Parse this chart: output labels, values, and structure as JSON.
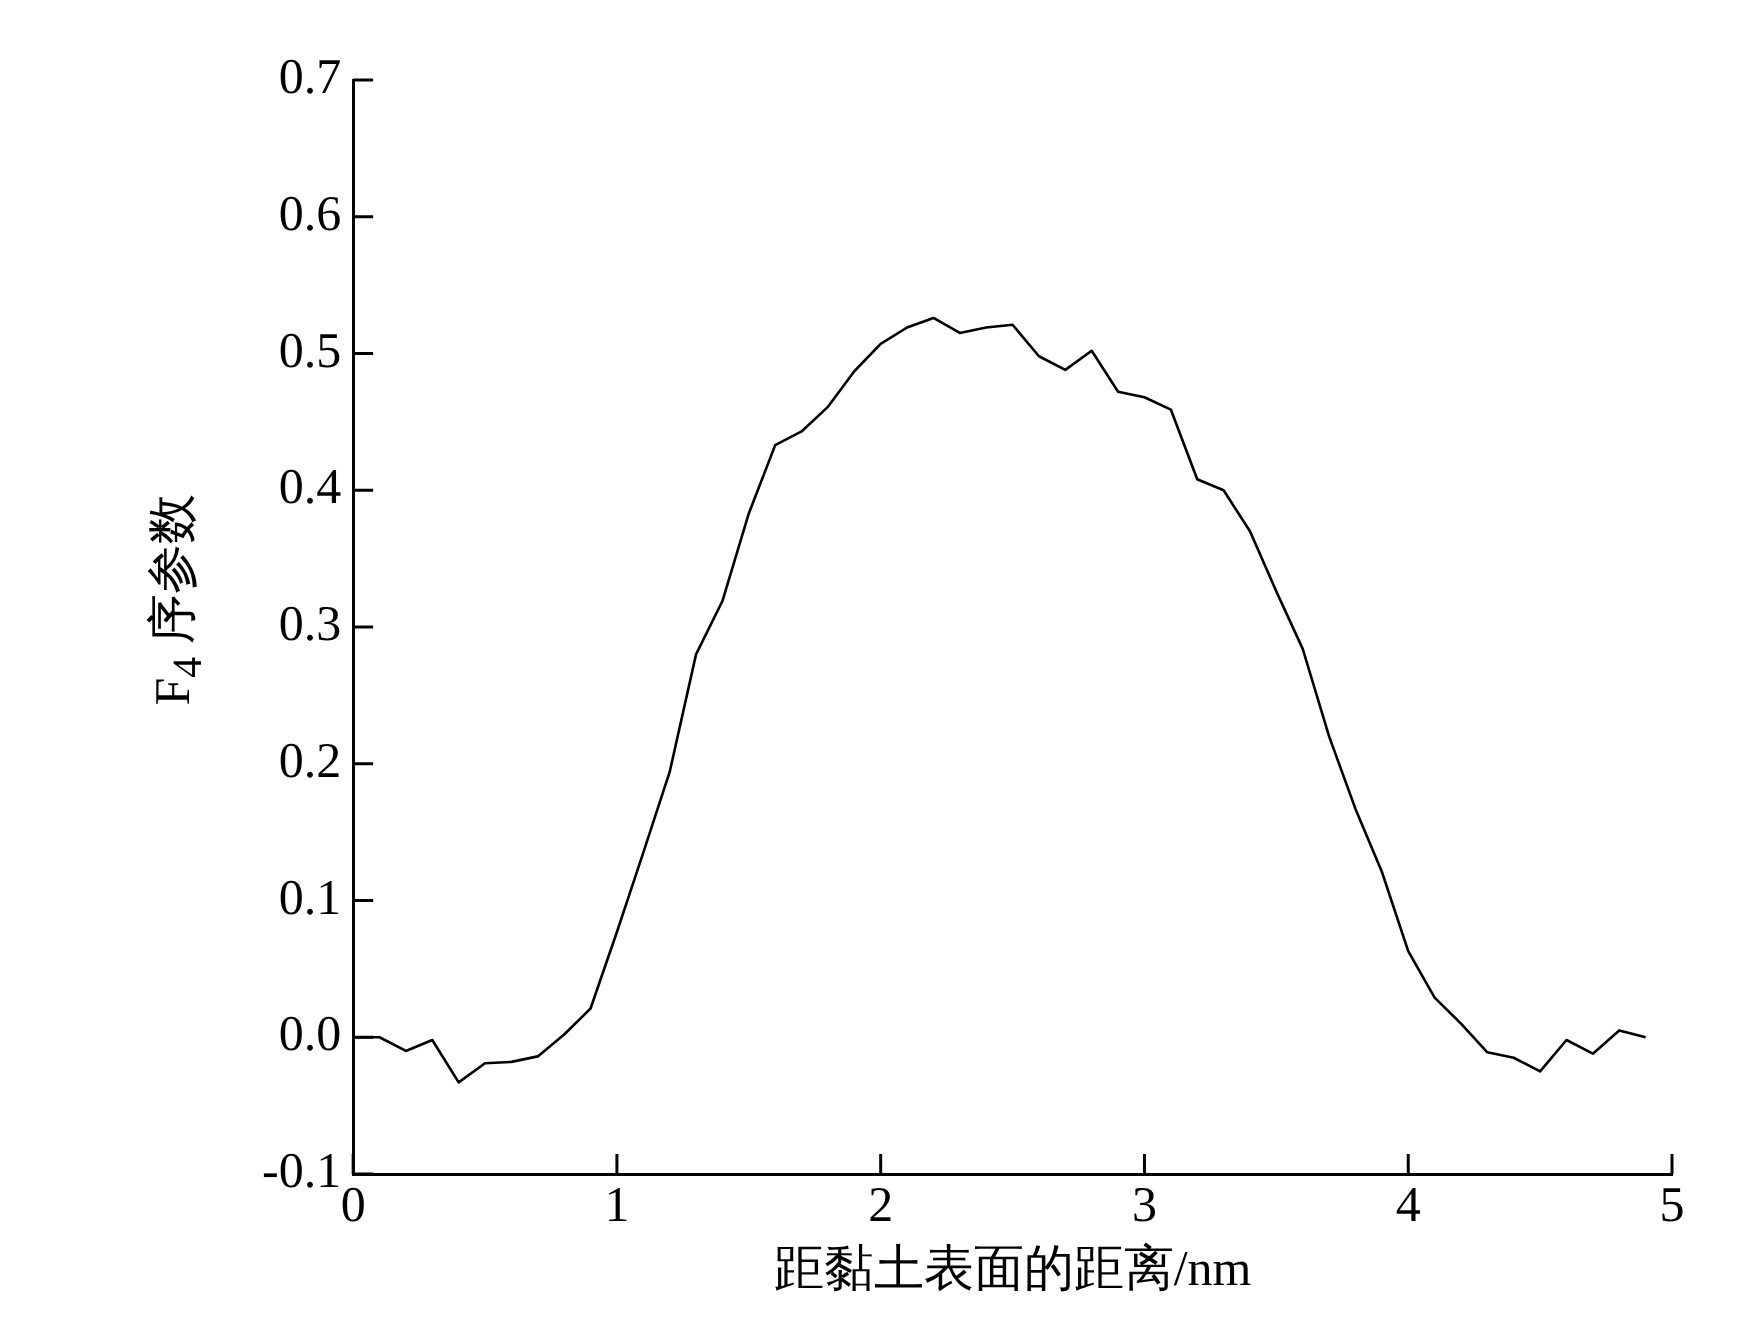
{
  "chart_data": {
    "type": "line",
    "xlabel": "距黏土表面的距离/nm",
    "ylabel": "F$_{4}$ 序参数",
    "x": [
      0,
      0.1,
      0.2,
      0.3,
      0.4,
      0.5,
      0.6,
      0.7,
      0.8,
      0.9,
      1.0,
      1.1,
      1.2,
      1.3,
      1.4,
      1.5,
      1.6,
      1.7,
      1.8,
      1.9,
      2.0,
      2.1,
      2.2,
      2.3,
      2.4,
      2.5,
      2.6,
      2.7,
      2.8,
      2.9,
      3.0,
      3.1,
      3.2,
      3.3,
      3.4,
      3.5,
      3.6,
      3.7,
      3.8,
      3.9,
      4.0,
      4.1,
      4.2,
      4.3,
      4.4,
      4.5,
      4.6,
      4.7,
      4.8,
      4.9
    ],
    "series": [
      {
        "color": "#000000",
        "values": [
          0.0,
          0.0,
          -0.01,
          -0.002,
          -0.033,
          -0.019,
          -0.018,
          -0.014,
          0.002,
          0.021,
          0.077,
          0.135,
          0.194,
          0.28,
          0.319,
          0.383,
          0.433,
          0.443,
          0.461,
          0.487,
          0.507,
          0.519,
          0.526,
          0.515,
          0.519,
          0.521,
          0.498,
          0.488,
          0.502,
          0.472,
          0.468,
          0.459,
          0.408,
          0.4,
          0.37,
          0.326,
          0.284,
          0.22,
          0.167,
          0.121,
          0.063,
          0.029,
          0.01,
          -0.011,
          -0.015,
          -0.025,
          -0.002,
          -0.012,
          0.005,
          0.0
        ]
      }
    ],
    "xlim": [
      0,
      5
    ],
    "xticks": [
      0,
      1,
      2,
      3,
      4,
      5
    ],
    "ylim": [
      -0.1,
      0.7
    ],
    "yticks": [
      {
        "value": -0.1,
        "label": "-0.1"
      },
      {
        "value": 0,
        "label": "0.0"
      },
      {
        "value": 0.1,
        "label": "0.1"
      },
      {
        "value": 0.2,
        "label": "0.2"
      },
      {
        "value": 0.3,
        "label": "0.3"
      },
      {
        "value": 0.4,
        "label": "0.4"
      },
      {
        "value": 0.5,
        "label": "0.5"
      },
      {
        "value": 0.6,
        "label": "0.6"
      },
      {
        "value": 0.7,
        "label": "0.7"
      }
    ],
    "grid": false,
    "legend": false,
    "marker": "none",
    "line_style": "solid"
  }
}
